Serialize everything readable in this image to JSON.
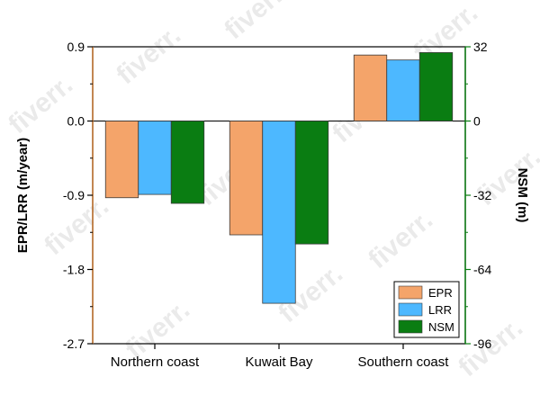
{
  "chart_data": {
    "type": "bar",
    "categories": [
      "Northern coast",
      "Kuwait Bay",
      "Southern coast"
    ],
    "series": [
      {
        "name": "EPR",
        "axis": "left",
        "color": "#f4a46a",
        "values": [
          -0.93,
          -1.38,
          0.8
        ]
      },
      {
        "name": "LRR",
        "axis": "left",
        "color": "#4db8ff",
        "values": [
          -0.89,
          -2.21,
          0.74
        ]
      },
      {
        "name": "NSM",
        "axis": "right",
        "color": "#0a7d12",
        "values": [
          -35.5,
          -53.0,
          29.5
        ]
      }
    ],
    "ylabel": "EPR/LRR (m/year)",
    "ylim": [
      -2.7,
      0.9
    ],
    "yticks": [
      0.9,
      0.0,
      -0.9,
      -1.8,
      -2.7
    ],
    "ytick_labels": [
      "0.9",
      "0.0",
      "-0.9",
      "-1.8",
      "-2.7"
    ],
    "y2label": "NSM (m)",
    "y2lim": [
      -96,
      32
    ],
    "y2ticks": [
      32,
      0,
      -32,
      -64,
      -96
    ],
    "y2tick_labels": [
      "32",
      "0",
      "-32",
      "-64",
      "-96"
    ],
    "left_axis_color": "#c0702a",
    "right_axis_color": "#0a7d12",
    "legend_position": "bottom-right",
    "grid": false
  },
  "watermark": "fiverr."
}
